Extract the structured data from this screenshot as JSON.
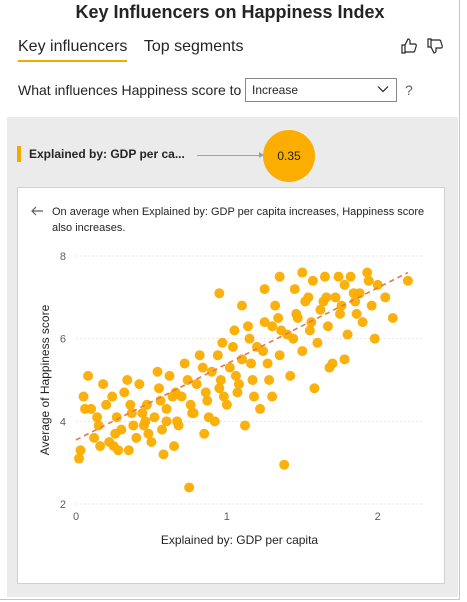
{
  "header": {
    "title": "Key Influencers on Happiness Index"
  },
  "tabs": [
    {
      "label": "Key influencers",
      "active": true
    },
    {
      "label": "Top segments",
      "active": false
    }
  ],
  "question": {
    "text": "What influences Happiness score to",
    "select_value": "Increase",
    "help": "?"
  },
  "influencer": {
    "label": "Explained by: GDP per ca...",
    "value": "0.35"
  },
  "explanation": "On average when Explained by: GDP per capita increases, Happiness score also increases.",
  "colors": {
    "accent": "#f2a900",
    "point": "#fbad00",
    "trend": "#e8764a"
  },
  "chart_data": {
    "type": "scatter",
    "xlabel": "Explained by: GDP per capita",
    "ylabel": "Average of Happiness score",
    "xlim": [
      0,
      2.3
    ],
    "ylim": [
      2,
      8
    ],
    "xticks": [
      "0",
      "1",
      "2"
    ],
    "yticks": [
      "2",
      "4",
      "6",
      "8"
    ],
    "trendline": {
      "x": [
        0,
        2.2
      ],
      "y": [
        3.55,
        7.6
      ]
    },
    "points": [
      [
        0.02,
        3.1
      ],
      [
        0.03,
        3.3
      ],
      [
        0.05,
        4.6
      ],
      [
        0.1,
        4.3
      ],
      [
        0.12,
        3.6
      ],
      [
        0.15,
        3.9
      ],
      [
        0.18,
        4.9
      ],
      [
        0.2,
        4.4
      ],
      [
        0.22,
        3.5
      ],
      [
        0.25,
        3.4
      ],
      [
        0.27,
        4.1
      ],
      [
        0.3,
        3.8
      ],
      [
        0.32,
        4.7
      ],
      [
        0.35,
        3.3
      ],
      [
        0.37,
        4.2
      ],
      [
        0.4,
        3.6
      ],
      [
        0.42,
        4.9
      ],
      [
        0.45,
        3.9
      ],
      [
        0.47,
        4.4
      ],
      [
        0.5,
        3.5
      ],
      [
        0.52,
        4.1
      ],
      [
        0.55,
        4.8
      ],
      [
        0.57,
        3.8
      ],
      [
        0.6,
        4.3
      ],
      [
        0.62,
        5.1
      ],
      [
        0.65,
        3.4
      ],
      [
        0.67,
        4.0
      ],
      [
        0.7,
        4.6
      ],
      [
        0.72,
        5.4
      ],
      [
        0.75,
        2.4
      ],
      [
        0.77,
        4.2
      ],
      [
        0.8,
        4.9
      ],
      [
        0.82,
        5.6
      ],
      [
        0.85,
        3.7
      ],
      [
        0.87,
        4.5
      ],
      [
        0.9,
        5.2
      ],
      [
        0.92,
        4.0
      ],
      [
        0.95,
        4.8
      ],
      [
        0.97,
        5.9
      ],
      [
        1.0,
        4.4
      ],
      [
        1.02,
        5.3
      ],
      [
        1.05,
        6.2
      ],
      [
        1.07,
        4.7
      ],
      [
        1.1,
        5.5
      ],
      [
        1.12,
        3.9
      ],
      [
        1.15,
        6.0
      ],
      [
        1.17,
        5.0
      ],
      [
        1.2,
        5.8
      ],
      [
        1.22,
        4.3
      ],
      [
        1.25,
        6.4
      ],
      [
        1.27,
        5.4
      ],
      [
        1.3,
        4.6
      ],
      [
        1.32,
        6.8
      ],
      [
        1.35,
        5.6
      ],
      [
        1.38,
        2.95
      ],
      [
        1.4,
        6.1
      ],
      [
        1.42,
        5.1
      ],
      [
        1.45,
        7.2
      ],
      [
        1.47,
        6.5
      ],
      [
        1.5,
        5.7
      ],
      [
        1.52,
        6.9
      ],
      [
        1.55,
        6.2
      ],
      [
        1.57,
        7.4
      ],
      [
        1.6,
        5.9
      ],
      [
        1.62,
        6.7
      ],
      [
        1.65,
        7.5
      ],
      [
        1.67,
        6.3
      ],
      [
        1.7,
        5.4
      ],
      [
        1.72,
        7.0
      ],
      [
        1.75,
        6.6
      ],
      [
        1.78,
        7.3
      ],
      [
        1.8,
        6.1
      ],
      [
        1.82,
        7.5
      ],
      [
        1.85,
        6.9
      ],
      [
        1.88,
        7.1
      ],
      [
        1.9,
        6.4
      ],
      [
        1.93,
        7.6
      ],
      [
        1.96,
        6.8
      ],
      [
        2.0,
        7.3
      ],
      [
        2.05,
        7.0
      ],
      [
        2.1,
        6.5
      ],
      [
        2.2,
        7.4
      ],
      [
        0.08,
        5.1
      ],
      [
        0.14,
        4.1
      ],
      [
        0.24,
        4.6
      ],
      [
        0.34,
        5.0
      ],
      [
        0.44,
        4.2
      ],
      [
        0.54,
        5.2
      ],
      [
        0.64,
        4.6
      ],
      [
        0.74,
        5.0
      ],
      [
        0.84,
        5.3
      ],
      [
        0.94,
        5.6
      ],
      [
        1.04,
        5.8
      ],
      [
        1.14,
        6.3
      ],
      [
        1.24,
        5.7
      ],
      [
        1.34,
        6.5
      ],
      [
        1.44,
        6.0
      ],
      [
        1.54,
        7.0
      ],
      [
        1.64,
        6.9
      ],
      [
        1.74,
        7.5
      ],
      [
        1.84,
        7.1
      ],
      [
        1.94,
        7.4
      ],
      [
        0.28,
        3.3
      ],
      [
        0.38,
        3.9
      ],
      [
        0.48,
        3.7
      ],
      [
        0.58,
        3.2
      ],
      [
        0.68,
        3.9
      ],
      [
        0.78,
        4.2
      ],
      [
        0.88,
        4.1
      ],
      [
        0.98,
        4.6
      ],
      [
        1.08,
        4.9
      ],
      [
        1.18,
        4.6
      ],
      [
        1.28,
        5.0
      ],
      [
        1.58,
        4.8
      ],
      [
        1.68,
        5.3
      ],
      [
        1.78,
        5.5
      ],
      [
        1.98,
        6.0
      ],
      [
        1.3,
        6.3
      ],
      [
        1.1,
        6.8
      ],
      [
        0.95,
        7.1
      ],
      [
        1.5,
        7.6
      ],
      [
        1.35,
        7.5
      ],
      [
        1.25,
        7.2
      ],
      [
        0.6,
        4.0
      ],
      [
        0.66,
        4.7
      ],
      [
        0.86,
        4.7
      ],
      [
        1.06,
        5.1
      ],
      [
        1.16,
        5.4
      ],
      [
        0.46,
        4.0
      ],
      [
        0.26,
        3.7
      ],
      [
        0.16,
        3.4
      ],
      [
        0.06,
        4.3
      ],
      [
        0.36,
        4.4
      ],
      [
        0.56,
        4.5
      ],
      [
        0.76,
        4.4
      ],
      [
        0.96,
        5.0
      ],
      [
        1.36,
        6.2
      ],
      [
        1.46,
        6.6
      ],
      [
        1.56,
        6.4
      ],
      [
        1.66,
        7.0
      ],
      [
        1.76,
        6.8
      ],
      [
        1.86,
        6.6
      ]
    ]
  }
}
